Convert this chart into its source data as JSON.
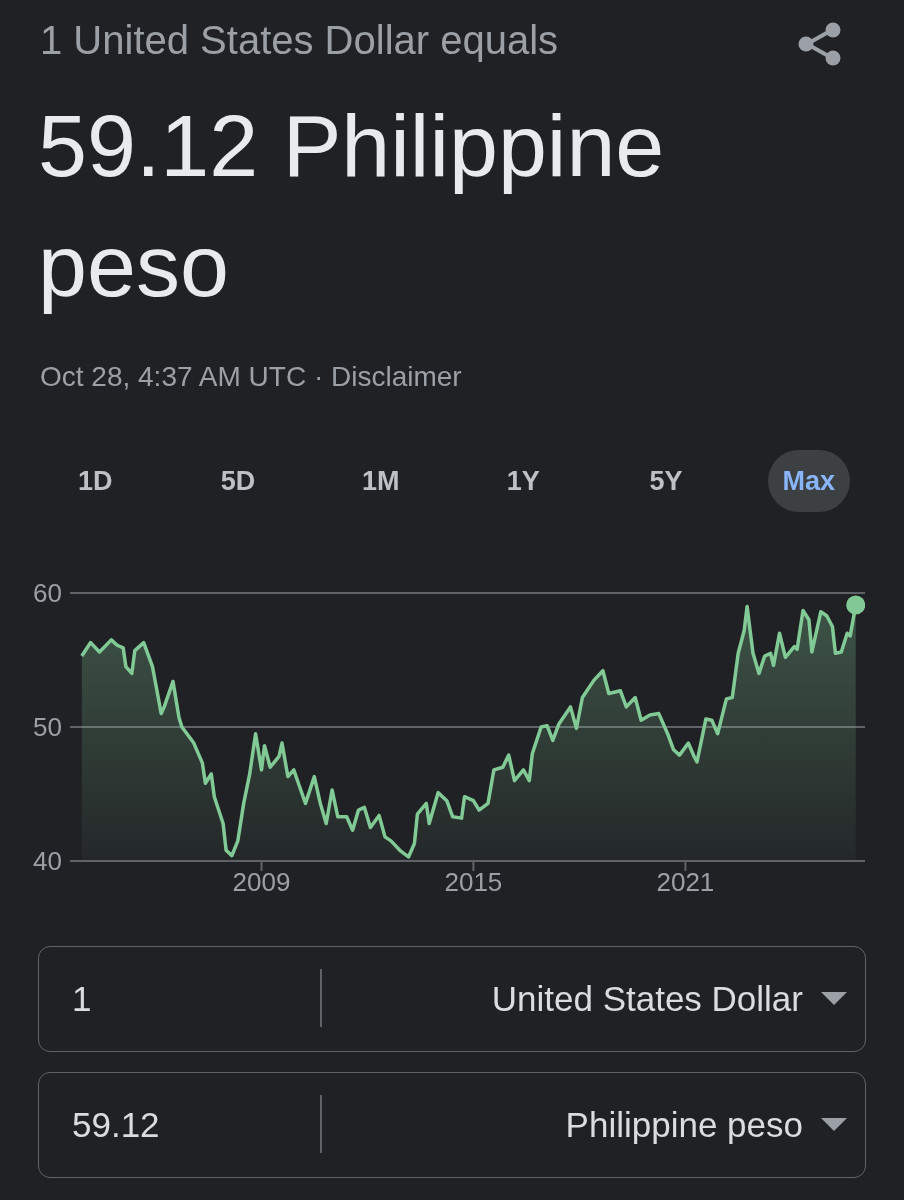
{
  "chart_data": {
    "type": "area",
    "subtitle": "1 United States Dollar equals",
    "title": "59.12 Philippine peso",
    "annotations": [
      "Oct 28, 4:37 AM UTC · Disclaimer",
      "1D",
      "5D",
      "1M",
      "1Y",
      "5Y",
      "Max",
      "1",
      "United States Dollar",
      "59.12",
      "Philippine peso"
    ],
    "x": [
      "2003-12",
      "2004-03",
      "2004-06",
      "2004-10",
      "2004-12",
      "2005-02",
      "2005-03",
      "2005-05",
      "2005-06",
      "2005-09",
      "2005-12",
      "2006-03",
      "2006-04",
      "2006-07",
      "2006-09",
      "2006-10",
      "2007-02",
      "2007-05",
      "2007-06",
      "2007-08",
      "2007-09",
      "2007-12",
      "2008-01",
      "2008-03",
      "2008-05",
      "2008-07",
      "2008-09",
      "2008-11",
      "2009-01",
      "2009-02",
      "2009-04",
      "2009-07",
      "2009-08",
      "2009-10",
      "2009-12",
      "2010-02",
      "2010-04",
      "2010-07",
      "2010-09",
      "2010-11",
      "2011-01",
      "2011-03",
      "2011-06",
      "2011-08",
      "2011-10",
      "2011-12",
      "2012-02",
      "2012-05",
      "2012-07",
      "2012-09",
      "2012-12",
      "2013-03",
      "2013-05",
      "2013-06",
      "2013-09",
      "2013-10",
      "2014-01",
      "2014-04",
      "2014-06",
      "2014-09",
      "2014-10",
      "2015-01",
      "2015-03",
      "2015-06",
      "2015-08",
      "2015-11",
      "2016-01",
      "2016-03",
      "2016-06",
      "2016-08",
      "2016-09",
      "2016-12",
      "2017-02",
      "2017-04",
      "2017-06",
      "2017-10",
      "2017-12",
      "2018-02",
      "2018-06",
      "2018-09",
      "2018-11",
      "2019-03",
      "2019-05",
      "2019-08",
      "2019-10",
      "2020-01",
      "2020-04",
      "2020-07",
      "2020-09",
      "2020-11",
      "2021-02",
      "2021-04",
      "2021-05",
      "2021-08",
      "2021-10",
      "2021-12",
      "2022-03",
      "2022-05",
      "2022-07",
      "2022-09",
      "2022-10",
      "2022-11",
      "2022-12",
      "2023-02",
      "2023-04",
      "2023-06",
      "2023-07",
      "2023-09",
      "2023-11",
      "2024-02",
      "2024-03",
      "2024-05",
      "2024-07",
      "2024-08",
      "2024-11",
      "2025-01",
      "2025-03",
      "2025-04",
      "2025-06",
      "2025-08",
      "2025-09",
      "2025-10-28"
    ],
    "series": [
      {
        "color": "#81c995",
        "values": [
          55.3,
          56.3,
          55.6,
          56.5,
          56.1,
          55.9,
          54.5,
          54.0,
          55.7,
          56.3,
          54.5,
          51.0,
          51.5,
          53.4,
          50.7,
          50.0,
          48.8,
          47.3,
          45.8,
          46.5,
          44.8,
          42.8,
          40.8,
          40.4,
          41.5,
          44.3,
          46.5,
          49.5,
          46.8,
          48.6,
          47.0,
          47.8,
          48.8,
          46.3,
          46.8,
          45.5,
          44.3,
          46.3,
          44.3,
          42.8,
          45.3,
          43.3,
          43.3,
          42.3,
          43.8,
          44.0,
          42.5,
          43.4,
          41.8,
          41.5,
          40.8,
          40.3,
          41.3,
          43.5,
          44.3,
          42.8,
          45.1,
          44.5,
          43.3,
          43.2,
          44.8,
          44.5,
          43.8,
          44.3,
          46.8,
          47.0,
          47.9,
          46.0,
          46.8,
          46.0,
          48.0,
          50.0,
          50.1,
          49.0,
          50.2,
          51.5,
          49.9,
          52.2,
          53.5,
          54.2,
          52.5,
          52.7,
          51.5,
          52.2,
          50.5,
          50.9,
          51.0,
          49.5,
          48.3,
          47.9,
          48.8,
          47.8,
          47.4,
          50.6,
          50.5,
          49.5,
          52.1,
          52.2,
          55.5,
          57.2,
          59.0,
          57.2,
          55.5,
          54.0,
          55.3,
          55.5,
          54.6,
          57.0,
          55.2,
          56.0,
          55.8,
          58.7,
          58.0,
          55.6,
          58.6,
          58.3,
          57.5,
          55.5,
          55.6,
          57.0,
          56.8,
          59.1
        ]
      },
      {
        "type": "scatter",
        "x": [
          "2025-10-28"
        ],
        "values": [
          59.1
        ],
        "color": "#81c995",
        "marker": "circle"
      }
    ],
    "xlim": [
      "2003-08",
      "2026-02"
    ],
    "xticks": [
      "2009",
      "2015",
      "2021"
    ],
    "ylim": [
      40,
      60
    ],
    "yticks": [
      40,
      50,
      60
    ],
    "grid": "y"
  }
}
